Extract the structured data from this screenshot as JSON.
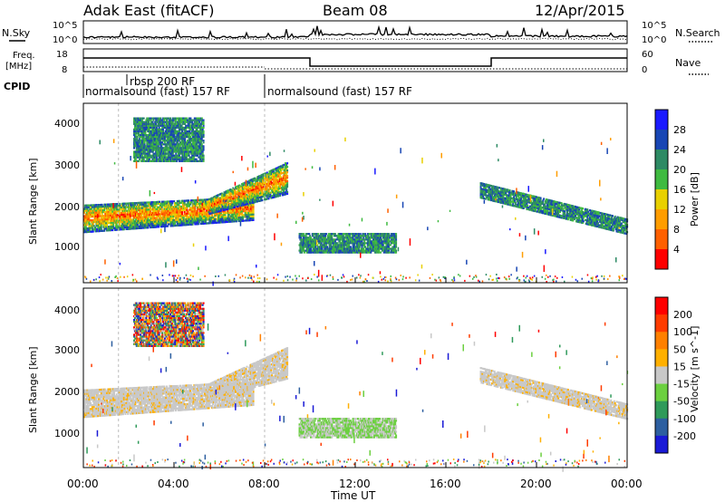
{
  "header": {
    "station": "Adak East (fitACF)",
    "beam": "Beam 08",
    "date": "12/Apr/2015"
  },
  "left_labels": {
    "nsky": "N.Sky",
    "freq": "Freq.",
    "freq_unit": "[MHz]",
    "cpid": "CPID"
  },
  "right_labels": {
    "nsearch": "N.Search",
    "nave": "Nave"
  },
  "noise_axis": {
    "left_ticks": [
      "10^5",
      "10^0"
    ],
    "right_ticks": [
      "10^5",
      "10^0"
    ]
  },
  "freq_axis": {
    "left_ticks": [
      "18",
      "8"
    ],
    "right_ticks": [
      "60",
      "0"
    ]
  },
  "cpid": {
    "segments": [
      {
        "label": "normalsound (fast) 157 RF",
        "start_h": 0.0,
        "end_h": 8.0
      },
      {
        "label": "rbsp 200 RF",
        "start_h": 1.55,
        "end_h": 8.0
      },
      {
        "label": "normalsound (fast) 157 RF",
        "start_h": 8.0,
        "end_h": 24.0
      }
    ]
  },
  "x_axis": {
    "label": "Time UT",
    "ticks": [
      "00:00",
      "04:00",
      "08:00",
      "12:00",
      "16:00",
      "20:00",
      "00:00"
    ]
  },
  "power_panel": {
    "ylabel": "Slant Range [km]",
    "yticks": [
      "4000",
      "3000",
      "2000",
      "1000"
    ],
    "colorbar_label": "Power [dB]",
    "colorbar_ticks": [
      "28",
      "24",
      "20",
      "16",
      "12",
      "8",
      "4"
    ],
    "colors": [
      "#1a1aff",
      "#1846b4",
      "#2d8a64",
      "#3fba40",
      "#e8d000",
      "#ff9d00",
      "#ff6000",
      "#ff0000"
    ]
  },
  "velocity_panel": {
    "ylabel": "Slant Range [km]",
    "yticks": [
      "4000",
      "3000",
      "2000",
      "1000"
    ],
    "colorbar_label": "Velocity [m s^-1]",
    "colorbar_ticks": [
      "200",
      "100",
      "50",
      "15",
      "-15",
      "-50",
      "-100",
      "-200"
    ],
    "colors": [
      "#1a1ad6",
      "#2d5fa0",
      "#2f9a5a",
      "#6cd040",
      "#c8c8c8",
      "#ffb000",
      "#ff8000",
      "#ff3c00",
      "#ff0000"
    ]
  },
  "chart_data": {
    "type": "heatmap",
    "x_range_hours": [
      0,
      24
    ],
    "y_range_km": [
      180,
      4600
    ],
    "frequency_mhz": [
      {
        "start_h": 0,
        "end_h": 10,
        "value": "high"
      },
      {
        "start_h": 10,
        "end_h": 18,
        "value": "low"
      },
      {
        "start_h": 18,
        "end_h": 24,
        "value": "high"
      }
    ],
    "echo_regions": [
      {
        "start_h": 0.0,
        "end_h": 7.5,
        "range_low_km": 1500,
        "range_high_km": 2200,
        "power_db": "8-28",
        "velocity": "-15 to 15"
      },
      {
        "start_h": 5.5,
        "end_h": 9.0,
        "range_low_km": 2000,
        "range_high_km": 3300,
        "power_db": "8-28",
        "velocity": "-15 to 15"
      },
      {
        "start_h": 2.2,
        "end_h": 5.3,
        "range_low_km": 3200,
        "range_high_km": 4300,
        "power_db": "4-20",
        "velocity": "mixed"
      },
      {
        "start_h": 9.5,
        "end_h": 13.8,
        "range_low_km": 950,
        "range_high_km": 1450,
        "power_db": "4-24",
        "velocity": "15 to 50"
      },
      {
        "start_h": 17.5,
        "end_h": 24.0,
        "range_low_km": 1400,
        "range_high_km": 2600,
        "power_db": "4-16",
        "velocity": "-15 to 15"
      }
    ]
  }
}
